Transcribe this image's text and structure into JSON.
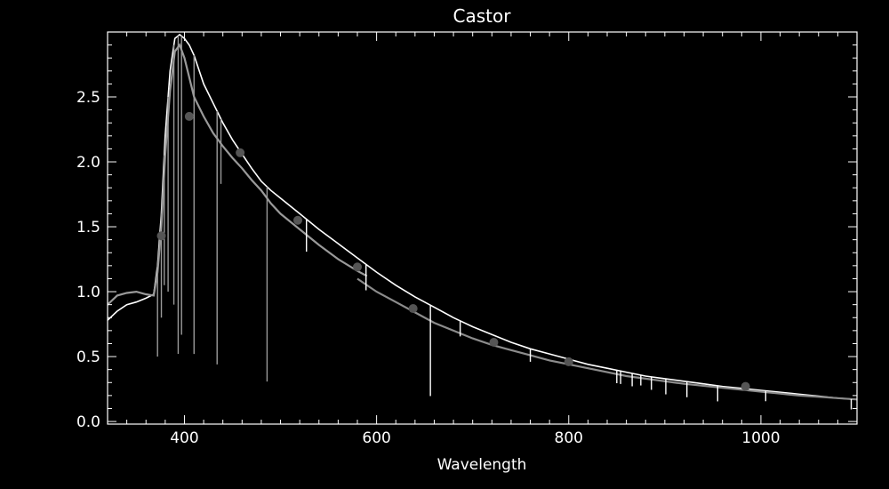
{
  "chart_data": {
    "type": "line",
    "title": "Castor",
    "xlabel": "Wavelength",
    "ylabel": "",
    "xlim": [
      320,
      1100
    ],
    "ylim": [
      -0.02,
      3.0
    ],
    "grid": false,
    "x_ticks": [
      400,
      600,
      800,
      1000
    ],
    "y_ticks": [
      0.0,
      0.5,
      1.0,
      1.5,
      2.0,
      2.5
    ],
    "y_tick_labels": [
      "0.0",
      "0.5",
      "1.0",
      "1.5",
      "2.0",
      "2.5"
    ],
    "colors": {
      "background": "#000000",
      "axes": "#ffffff",
      "spectrum_white": "#ffffff",
      "spectrum_gray": "#9a9a9a",
      "smooth_model": "#8c8c8c",
      "markers": "#555555"
    },
    "series": [
      {
        "color_key": "spectrum_white",
        "x": [
          320,
          330,
          340,
          350,
          360,
          368,
          372,
          376,
          380,
          385,
          390,
          395,
          400,
          405,
          410,
          420,
          430,
          440,
          450,
          460,
          470,
          480,
          490,
          500,
          520,
          540,
          560,
          580,
          600,
          620,
          640,
          660,
          680,
          700,
          720,
          740,
          760,
          780,
          800,
          820,
          840,
          860,
          880,
          900,
          920,
          940,
          960,
          980,
          1000,
          1020,
          1040,
          1060,
          1080,
          1100
        ],
        "y": [
          0.78,
          0.85,
          0.9,
          0.92,
          0.95,
          0.98,
          1.2,
          1.6,
          2.2,
          2.7,
          2.95,
          2.98,
          2.95,
          2.9,
          2.82,
          2.6,
          2.45,
          2.3,
          2.17,
          2.06,
          1.95,
          1.85,
          1.78,
          1.72,
          1.6,
          1.48,
          1.37,
          1.26,
          1.15,
          1.05,
          0.96,
          0.88,
          0.8,
          0.73,
          0.67,
          0.61,
          0.56,
          0.52,
          0.48,
          0.44,
          0.41,
          0.38,
          0.35,
          0.33,
          0.31,
          0.29,
          0.27,
          0.255,
          0.24,
          0.225,
          0.21,
          0.195,
          0.18,
          0.17
        ]
      },
      {
        "color_key": "spectrum_gray",
        "x": [
          320,
          330,
          340,
          350,
          360,
          368,
          372,
          376,
          380,
          385,
          390,
          395,
          400,
          405,
          410,
          420,
          430,
          440,
          450,
          460,
          470,
          480,
          490,
          500,
          520,
          540,
          560,
          580,
          590
        ],
        "y": [
          0.9,
          0.97,
          0.99,
          1.0,
          0.98,
          0.97,
          1.15,
          1.5,
          2.05,
          2.55,
          2.85,
          2.9,
          2.8,
          2.65,
          2.5,
          2.35,
          2.22,
          2.12,
          2.03,
          1.95,
          1.86,
          1.78,
          1.68,
          1.6,
          1.48,
          1.36,
          1.25,
          1.16,
          1.12
        ]
      },
      {
        "color_key": "smooth_model",
        "x": [
          580,
          600,
          620,
          640,
          660,
          680,
          700,
          720,
          740,
          760,
          780,
          800,
          820,
          840,
          860,
          880,
          900,
          920,
          940,
          960,
          980,
          1000,
          1020,
          1040,
          1060,
          1080,
          1100
        ],
        "y": [
          1.1,
          1.0,
          0.92,
          0.84,
          0.76,
          0.7,
          0.64,
          0.59,
          0.55,
          0.51,
          0.47,
          0.44,
          0.41,
          0.38,
          0.35,
          0.33,
          0.31,
          0.29,
          0.275,
          0.26,
          0.245,
          0.23,
          0.215,
          0.2,
          0.19,
          0.18,
          0.17
        ]
      }
    ],
    "absorption_lines": [
      {
        "x": 372,
        "depth": 0.7
      },
      {
        "x": 376,
        "depth": 0.8
      },
      {
        "x": 379,
        "depth": 1.0
      },
      {
        "x": 383,
        "depth": 1.5
      },
      {
        "x": 389,
        "depth": 2.0
      },
      {
        "x": 393.5,
        "depth": 2.45
      },
      {
        "x": 397,
        "depth": 2.3
      },
      {
        "x": 410,
        "depth": 2.3
      },
      {
        "x": 434,
        "depth": 1.95
      },
      {
        "x": 438,
        "depth": 0.5
      },
      {
        "x": 486,
        "depth": 1.5
      },
      {
        "x": 527,
        "depth": 0.25
      },
      {
        "x": 589,
        "depth": 0.2
      },
      {
        "x": 656,
        "depth": 0.7
      },
      {
        "x": 687,
        "depth": 0.12
      },
      {
        "x": 760,
        "depth": 0.1
      },
      {
        "x": 850,
        "depth": 0.1
      },
      {
        "x": 854,
        "depth": 0.1
      },
      {
        "x": 866,
        "depth": 0.1
      },
      {
        "x": 875,
        "depth": 0.08
      },
      {
        "x": 886,
        "depth": 0.1
      },
      {
        "x": 901,
        "depth": 0.12
      },
      {
        "x": 923,
        "depth": 0.12
      },
      {
        "x": 955,
        "depth": 0.12
      },
      {
        "x": 1005,
        "depth": 0.08
      },
      {
        "x": 1094,
        "depth": 0.08
      }
    ],
    "markers": {
      "x": [
        376,
        405,
        458,
        518,
        580,
        638,
        722,
        800,
        984
      ],
      "y": [
        1.43,
        2.35,
        2.07,
        1.55,
        1.19,
        0.87,
        0.61,
        0.46,
        0.27
      ]
    }
  }
}
